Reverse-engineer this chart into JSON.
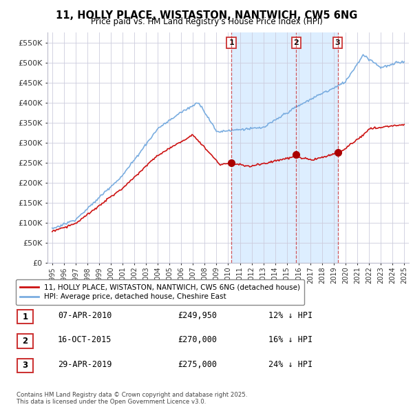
{
  "title": "11, HOLLY PLACE, WISTASTON, NANTWICH, CW5 6NG",
  "subtitle": "Price paid vs. HM Land Registry's House Price Index (HPI)",
  "ylim": [
    0,
    575000
  ],
  "yticks": [
    0,
    50000,
    100000,
    150000,
    200000,
    250000,
    300000,
    350000,
    400000,
    450000,
    500000,
    550000
  ],
  "ytick_labels": [
    "£0",
    "£50K",
    "£100K",
    "£150K",
    "£200K",
    "£250K",
    "£300K",
    "£350K",
    "£400K",
    "£450K",
    "£500K",
    "£550K"
  ],
  "hpi_color": "#7aade0",
  "price_color": "#cc1111",
  "marker_color": "#aa0000",
  "vline_color": "#cc3333",
  "shade_color": "#ddeeff",
  "background_color": "#ffffff",
  "grid_color": "#ccccdd",
  "transactions": [
    {
      "label": "1",
      "date_num": 2010.27,
      "price": 249950,
      "date_str": "07-APR-2010",
      "pct": "12%",
      "dir": "↓"
    },
    {
      "label": "2",
      "date_num": 2015.79,
      "price": 270000,
      "date_str": "16-OCT-2015",
      "pct": "16%",
      "dir": "↓"
    },
    {
      "label": "3",
      "date_num": 2019.33,
      "price": 275000,
      "date_str": "29-APR-2019",
      "pct": "24%",
      "dir": "↓"
    }
  ],
  "legend_label_price": "11, HOLLY PLACE, WISTASTON, NANTWICH, CW5 6NG (detached house)",
  "legend_label_hpi": "HPI: Average price, detached house, Cheshire East",
  "footnote": "Contains HM Land Registry data © Crown copyright and database right 2025.\nThis data is licensed under the Open Government Licence v3.0.",
  "xtick_years": [
    1995,
    1996,
    1997,
    1998,
    1999,
    2000,
    2001,
    2002,
    2003,
    2004,
    2005,
    2006,
    2007,
    2008,
    2009,
    2010,
    2011,
    2012,
    2013,
    2014,
    2015,
    2016,
    2017,
    2018,
    2019,
    2020,
    2021,
    2022,
    2023,
    2024,
    2025
  ],
  "xlim": [
    1994.6,
    2025.4
  ]
}
